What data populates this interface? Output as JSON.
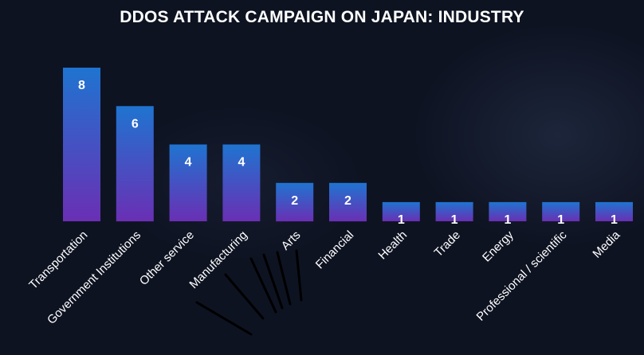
{
  "chart_data": {
    "type": "bar",
    "title": "DDOS ATTACK CAMPAIGN ON JAPAN: INDUSTRY",
    "categories": [
      "Transportation",
      "Government Institutions",
      "Other service",
      "Manufacturing",
      "Arts",
      "Financial",
      "Health",
      "Trade",
      "Energy",
      "Professional / scientific",
      "Media"
    ],
    "values": [
      8,
      6,
      4,
      4,
      2,
      2,
      1,
      1,
      1,
      1,
      1
    ],
    "data_labels": true,
    "xlabel": "",
    "ylabel": "",
    "ylim": [
      0,
      8
    ],
    "grid": false,
    "legend": "none",
    "colors": {
      "bar_top": "#1f74d0",
      "bar_bottom": "#6a2fb4",
      "background": "#0e1322",
      "text": "#ffffff"
    }
  }
}
